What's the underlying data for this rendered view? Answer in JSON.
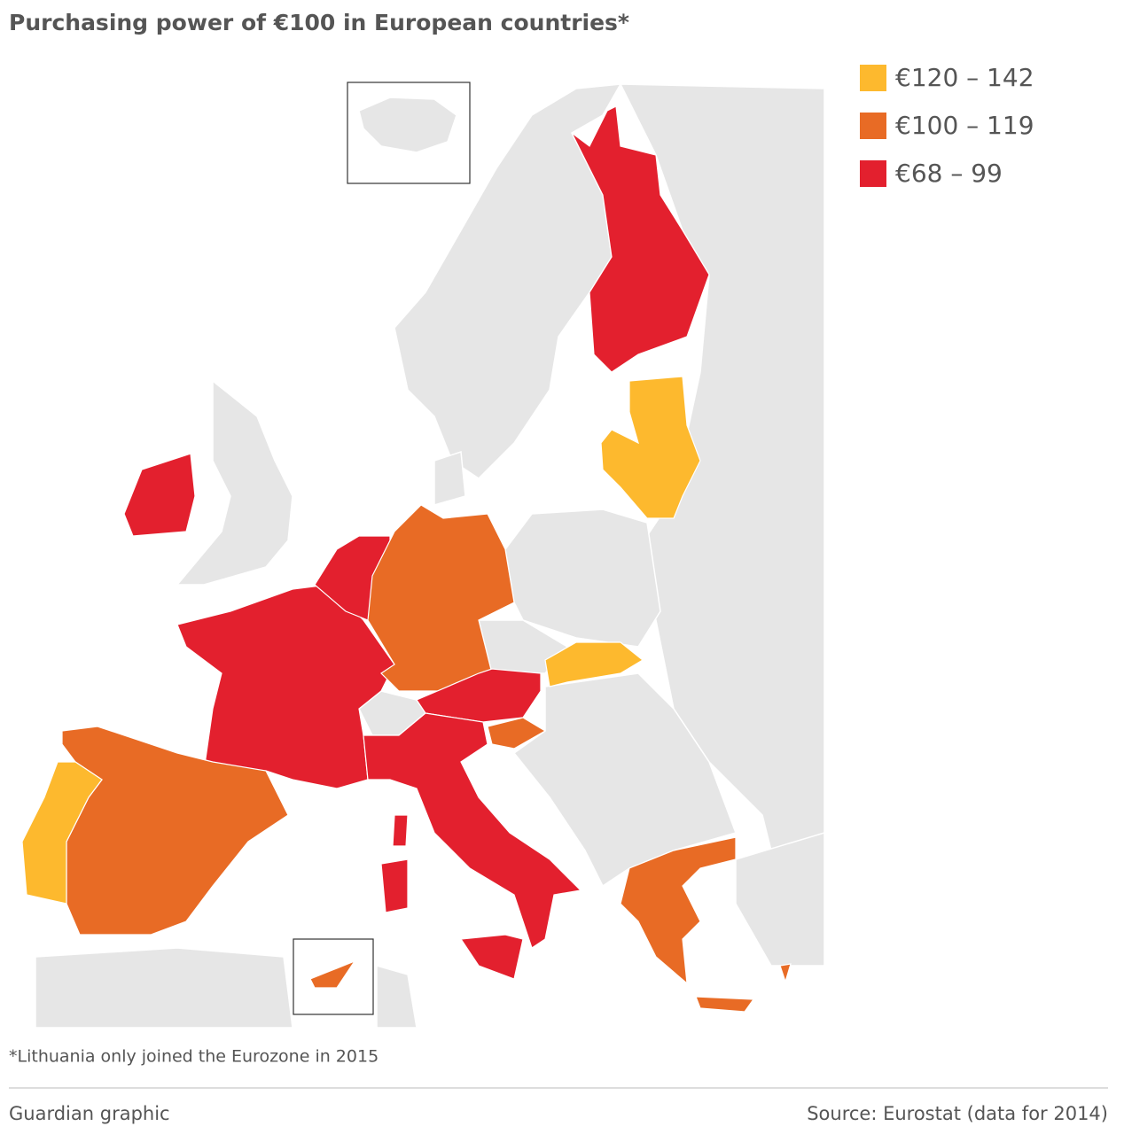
{
  "header": {
    "title": "Purchasing power of €100 in European countries*"
  },
  "legend": [
    {
      "label": "€120 – 142",
      "color": "#fdb92e"
    },
    {
      "label": "€100 – 119",
      "color": "#e86b25"
    },
    {
      "label": "€68 – 99",
      "color": "#e3202e"
    }
  ],
  "footnote": "*Lithuania only joined the Eurozone in 2015",
  "footer": {
    "credit": "Guardian graphic",
    "source": "Source: Eurostat (data for 2014)"
  }
}
